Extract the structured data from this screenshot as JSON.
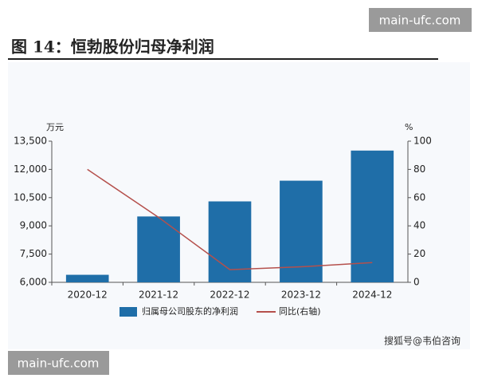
{
  "chart_data": {
    "type": "bar",
    "title": "图 14：恒勃股份归母净利润",
    "y_label": "万元",
    "y2_label": "%",
    "categories": [
      "2020-12",
      "2021-12",
      "2022-12",
      "2023-12",
      "2024-12"
    ],
    "series": [
      {
        "name": "归属母公司股东的净利润",
        "color": "#1f6ea8",
        "values": [
          6400,
          9500,
          10300,
          11400,
          13000
        ]
      },
      {
        "name": "同比(右轴)",
        "color": "#b5504c",
        "axis": "y2",
        "values": [
          80,
          46,
          9,
          11,
          14
        ]
      }
    ],
    "ylim": [
      6000,
      13500
    ],
    "yticks": [
      {
        "value": 6000,
        "label": "6,000"
      },
      {
        "value": 7500,
        "label": "7,500"
      },
      {
        "value": 9000,
        "label": "9,000"
      },
      {
        "value": 10500,
        "label": "10,500"
      },
      {
        "value": 12000,
        "label": "12,000"
      },
      {
        "value": 13500,
        "label": "13,500"
      }
    ],
    "y2lim": [
      0,
      100
    ],
    "y2ticks": [
      0,
      20,
      40,
      60,
      80,
      100
    ]
  },
  "watermarks": [
    "main-ufc.com",
    "main-ufc.com",
    "搜狐号@韦伯咨询"
  ]
}
